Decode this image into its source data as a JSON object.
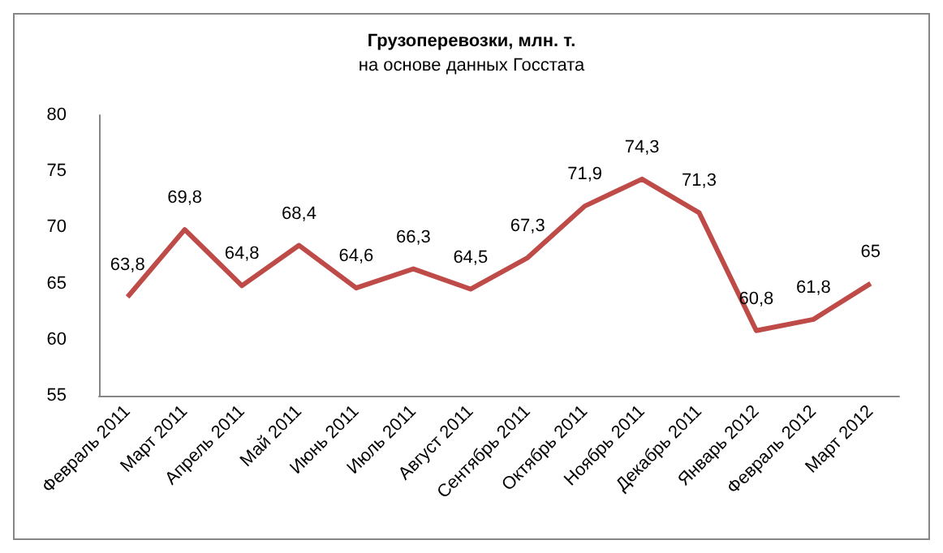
{
  "chart_data": {
    "type": "line",
    "title": "Грузоперевозки, млн. т.",
    "subtitle": "на основе данных Госстата",
    "categories": [
      "Февраль 2011",
      "Март 2011",
      "Апрель 2011",
      "Май 2011",
      "Июнь 2011",
      "Июль 2011",
      "Август 2011",
      "Сентябрь 2011",
      "Октябрь 2011",
      "Ноябрь 2011",
      "Декабрь 2011",
      "Январь 2012",
      "Февраль 2012",
      "Март 2012"
    ],
    "series": [
      {
        "color": "#be4b48",
        "values": [
          63.8,
          69.8,
          64.8,
          68.4,
          64.6,
          66.3,
          64.5,
          67.3,
          71.9,
          74.3,
          71.3,
          60.8,
          61.8,
          65
        ],
        "value_labels": [
          "63,8",
          "69,8",
          "64,8",
          "68,4",
          "64,6",
          "66,3",
          "64,5",
          "67,3",
          "71,9",
          "74,3",
          "71,3",
          "60,8",
          "61,8",
          "65"
        ]
      }
    ],
    "ylim": [
      55,
      80
    ],
    "yticks": [
      55,
      60,
      65,
      70,
      75,
      80
    ],
    "grid": false,
    "marker": "none",
    "line_style": "solid"
  }
}
